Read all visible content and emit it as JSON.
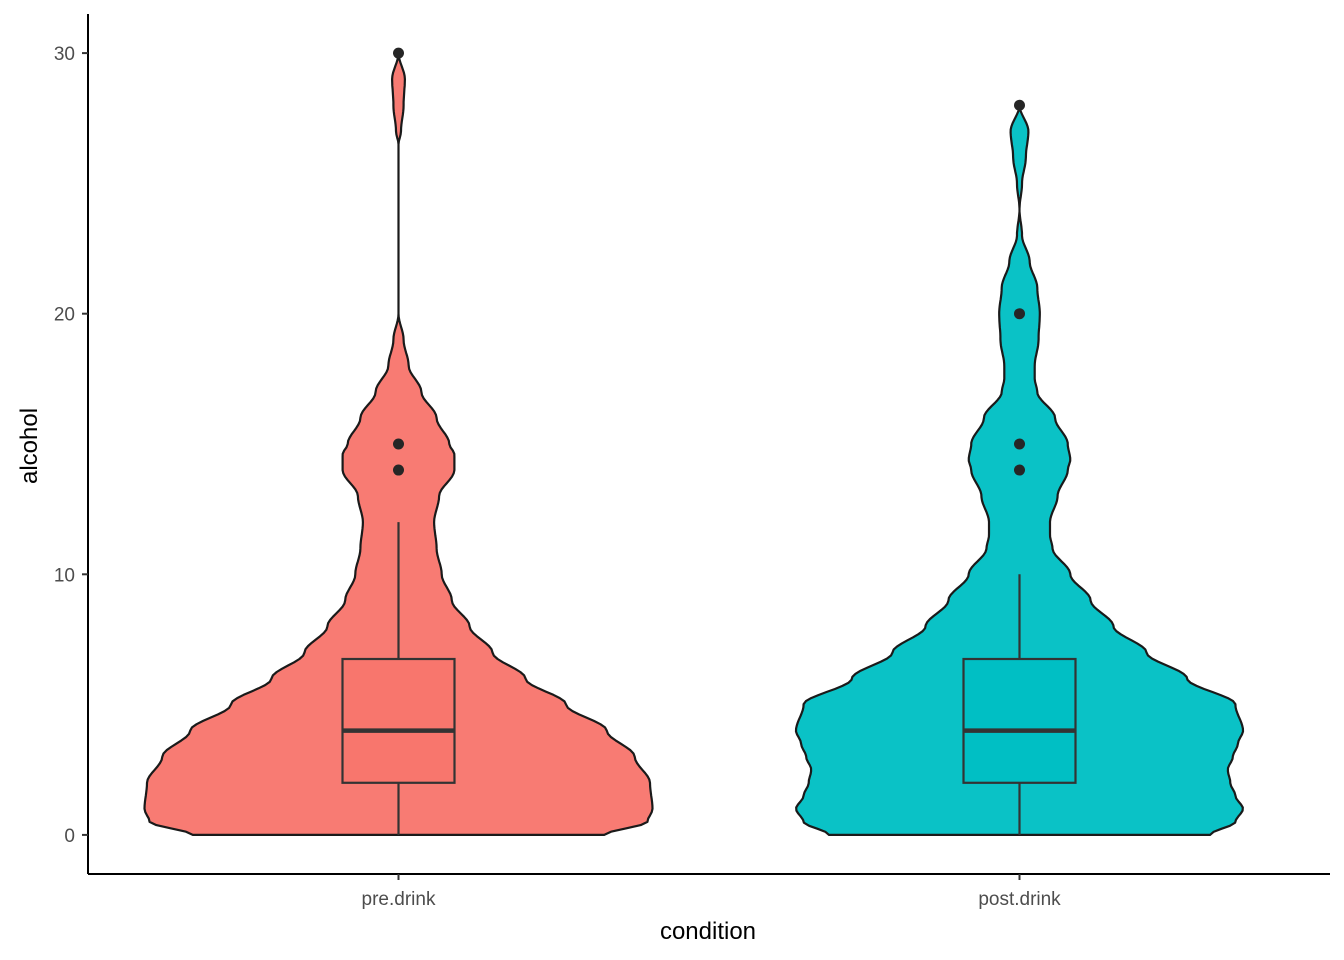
{
  "chart_data": {
    "type": "violin",
    "xlabel": "condition",
    "ylabel": "alcohol",
    "ylim": [
      -1.5,
      31.5
    ],
    "y_ticks": [
      0,
      10,
      20,
      30
    ],
    "y_tick_labels": [
      "0",
      "10",
      "20",
      "30"
    ],
    "categories": [
      "pre.drink",
      "post.drink"
    ],
    "grid": false,
    "legend": "none",
    "groups": [
      {
        "label": "pre.drink",
        "color": "#F8766D",
        "box": {
          "min": 0,
          "q1": 2,
          "median": 4,
          "q3": 6.75,
          "whisker_high": 12
        },
        "outliers": [
          14,
          15,
          30
        ],
        "violin_range": [
          0,
          30
        ],
        "density": [
          [
            0,
            0.81
          ],
          [
            0.5,
            0.98
          ],
          [
            1,
            1.0
          ],
          [
            2,
            0.99
          ],
          [
            3,
            0.93
          ],
          [
            4,
            0.82
          ],
          [
            5,
            0.66
          ],
          [
            6,
            0.5
          ],
          [
            7,
            0.37
          ],
          [
            8,
            0.28
          ],
          [
            9,
            0.21
          ],
          [
            10,
            0.17
          ],
          [
            11,
            0.15
          ],
          [
            12,
            0.14
          ],
          [
            13,
            0.16
          ],
          [
            14,
            0.22
          ],
          [
            14.6,
            0.22
          ],
          [
            15,
            0.2
          ],
          [
            16,
            0.15
          ],
          [
            17,
            0.09
          ],
          [
            18,
            0.04
          ],
          [
            19,
            0.02
          ],
          [
            20,
            0.0
          ],
          [
            22,
            0.0
          ],
          [
            25,
            0.0
          ],
          [
            26.5,
            0.0
          ],
          [
            27,
            0.01
          ],
          [
            28,
            0.02
          ],
          [
            29,
            0.025
          ],
          [
            30,
            0.0
          ]
        ]
      },
      {
        "label": "post.drink",
        "color": "#00BFC4",
        "box": {
          "min": 0,
          "q1": 2,
          "median": 4,
          "q3": 6.75,
          "whisker_high": 10
        },
        "outliers": [
          14,
          15,
          20,
          28
        ],
        "violin_range": [
          0,
          28
        ],
        "density": [
          [
            0,
            0.75
          ],
          [
            0.5,
            0.85
          ],
          [
            1,
            0.88
          ],
          [
            1.5,
            0.85
          ],
          [
            2,
            0.83
          ],
          [
            2.5,
            0.82
          ],
          [
            3,
            0.84
          ],
          [
            3.5,
            0.86
          ],
          [
            4,
            0.88
          ],
          [
            5,
            0.85
          ],
          [
            6,
            0.66
          ],
          [
            7,
            0.5
          ],
          [
            8,
            0.37
          ],
          [
            9,
            0.28
          ],
          [
            10,
            0.2
          ],
          [
            11,
            0.13
          ],
          [
            11.5,
            0.12
          ],
          [
            12,
            0.12
          ],
          [
            13,
            0.15
          ],
          [
            14,
            0.19
          ],
          [
            14.4,
            0.2
          ],
          [
            15,
            0.19
          ],
          [
            16,
            0.14
          ],
          [
            17,
            0.07
          ],
          [
            17.5,
            0.06
          ],
          [
            18,
            0.06
          ],
          [
            19,
            0.075
          ],
          [
            20,
            0.08
          ],
          [
            21,
            0.07
          ],
          [
            22,
            0.04
          ],
          [
            23,
            0.01
          ],
          [
            24,
            0.0
          ],
          [
            25,
            0.01
          ],
          [
            26,
            0.025
          ],
          [
            27,
            0.035
          ],
          [
            28,
            0.0
          ]
        ]
      }
    ]
  }
}
